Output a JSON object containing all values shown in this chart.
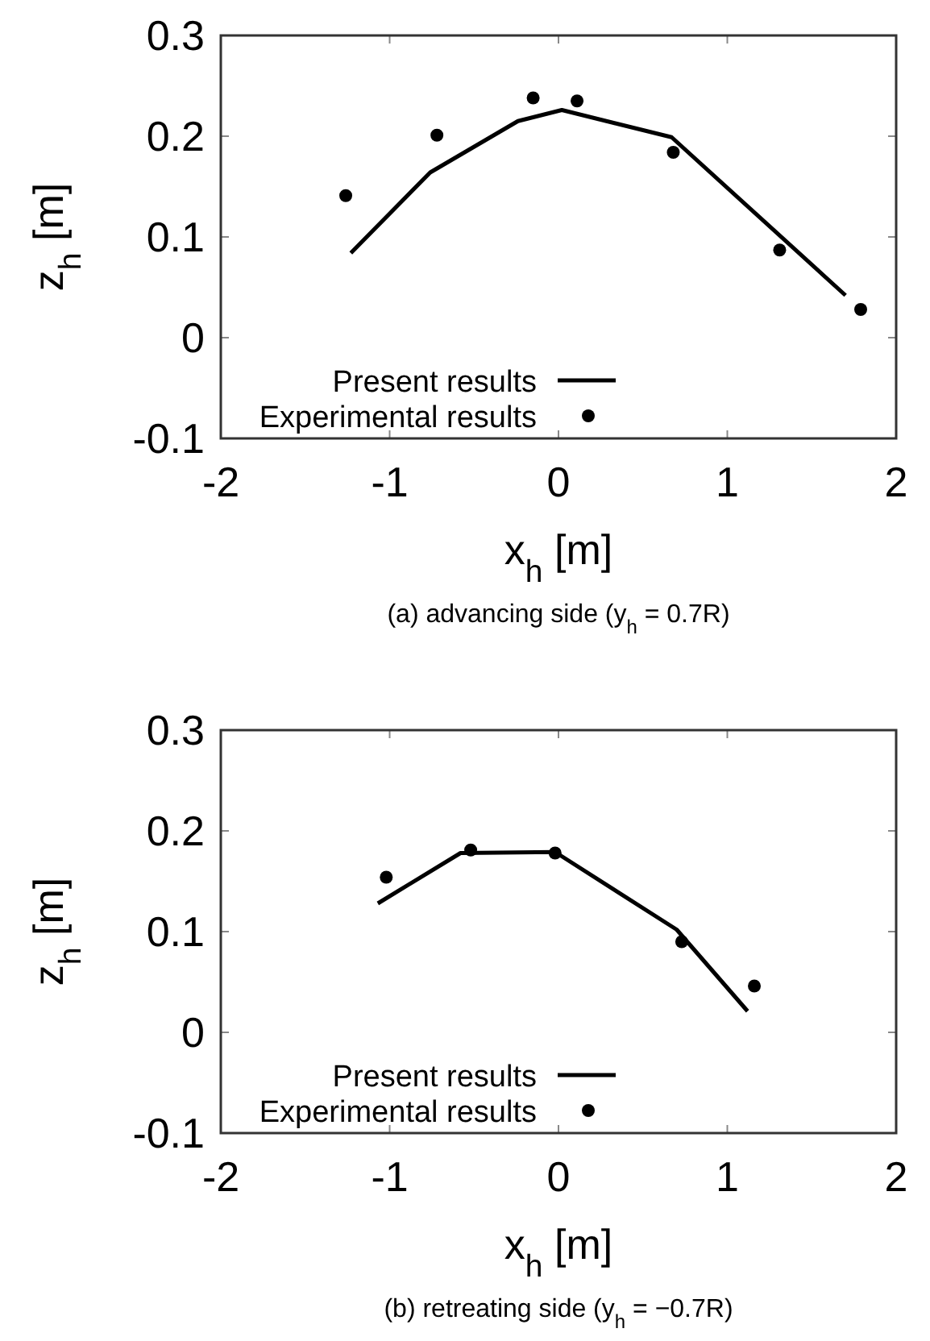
{
  "chart_data": [
    {
      "type": "line",
      "xlabel": "x$_{h}$ [m]",
      "ylabel": "z$_{h}$ [m]",
      "xlim": [
        -2,
        2
      ],
      "ylim": [
        -0.1,
        0.3
      ],
      "xticks": [
        -2,
        -1,
        0,
        1,
        2
      ],
      "yticks": [
        -0.1,
        0,
        0.1,
        0.2,
        0.3
      ],
      "grid": false,
      "legend": "bottom left",
      "annotations": [
        "(a)  advancing side (y$_{h}$ = 0.7R)"
      ],
      "series": [
        {
          "name": "Present results",
          "type": "line",
          "color": "#000000",
          "line_style": "solid",
          "marker": "none",
          "x": [
            -1.23,
            -0.76,
            -0.24,
            0.02,
            0.67,
            1.7
          ],
          "values": [
            0.084,
            0.164,
            0.215,
            0.226,
            0.199,
            0.042
          ]
        },
        {
          "name": "Experimental results",
          "type": "scatter",
          "color": "#000000",
          "marker": "circle",
          "x": [
            -1.26,
            -0.72,
            -0.15,
            0.11,
            0.68,
            1.31,
            1.79
          ],
          "values": [
            0.141,
            0.201,
            0.238,
            0.235,
            0.184,
            0.087,
            0.028
          ]
        }
      ]
    },
    {
      "type": "line",
      "xlabel": "x$_{h}$ [m]",
      "ylabel": "z$_{h}$ [m]",
      "xlim": [
        -2,
        2
      ],
      "ylim": [
        -0.1,
        0.3
      ],
      "xticks": [
        -2,
        -1,
        0,
        1,
        2
      ],
      "yticks": [
        -0.1,
        0,
        0.1,
        0.2,
        0.3
      ],
      "grid": false,
      "legend": "bottom left",
      "annotations": [
        "(b)  retreating side (y$_{h}$ = −0.7R)"
      ],
      "series": [
        {
          "name": "Present results",
          "type": "line",
          "color": "#000000",
          "line_style": "solid",
          "marker": "none",
          "x": [
            -1.07,
            -0.58,
            -0.02,
            0.7,
            1.12
          ],
          "values": [
            0.128,
            0.178,
            0.179,
            0.102,
            0.021
          ]
        },
        {
          "name": "Experimental results",
          "type": "scatter",
          "color": "#000000",
          "marker": "circle",
          "x": [
            -1.02,
            -0.52,
            -0.02,
            0.73,
            1.16
          ],
          "values": [
            0.154,
            0.181,
            0.178,
            0.09,
            0.046
          ]
        }
      ]
    }
  ]
}
